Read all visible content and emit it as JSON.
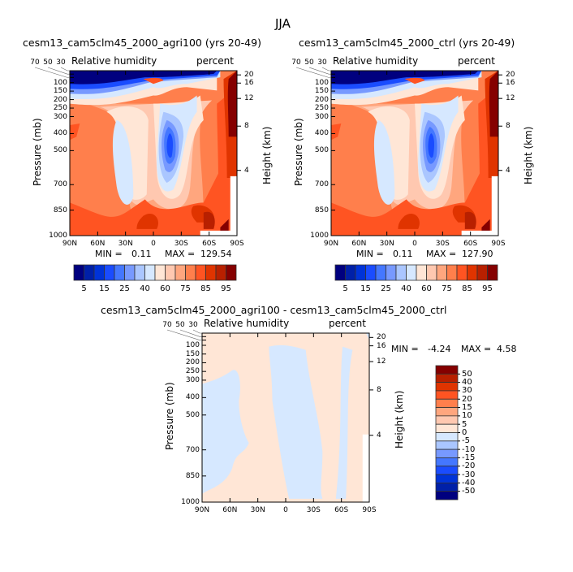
{
  "chart_data": [
    {
      "type": "heatmap",
      "title": "cesm13_cam5clm45_2000_agri100 (yrs 20-49)",
      "left_string": "Relative humidity",
      "right_string": "percent",
      "ylabel": "Pressure (mb)",
      "ylabel_right": "Height (km)",
      "stats": {
        "min_label": "MIN =",
        "min": "0.11",
        "max_label": "MAX =",
        "max": "129.54"
      },
      "x_ticks": [
        "90N",
        "60N",
        "30N",
        "0",
        "30S",
        "60S",
        "90S"
      ],
      "y_ticks": [
        30,
        50,
        70,
        100,
        150,
        200,
        250,
        300,
        400,
        500,
        700,
        850,
        1000
      ],
      "y_ticks_right": [
        4,
        8,
        12,
        16,
        20
      ],
      "ylim": [
        1000,
        30
      ],
      "colorbar": {
        "orientation": "horizontal",
        "levels": [
          5,
          10,
          15,
          20,
          25,
          30,
          40,
          50,
          60,
          70,
          75,
          80,
          85,
          90,
          95
        ],
        "labels": [
          "5",
          "15",
          "25",
          "40",
          "60",
          "75",
          "85",
          "95"
        ]
      }
    },
    {
      "type": "heatmap",
      "title": "cesm13_cam5clm45_2000_ctrl (yrs 20-49)",
      "left_string": "Relative humidity",
      "right_string": "percent",
      "ylabel": "Pressure (mb)",
      "ylabel_right": "Height (km)",
      "stats": {
        "min_label": "MIN =",
        "min": "0.11",
        "max_label": "MAX =",
        "max": "127.90"
      },
      "x_ticks": [
        "90N",
        "60N",
        "30N",
        "0",
        "30S",
        "60S",
        "90S"
      ],
      "y_ticks": [
        30,
        50,
        70,
        100,
        150,
        200,
        250,
        300,
        400,
        500,
        700,
        850,
        1000
      ],
      "y_ticks_right": [
        4,
        8,
        12,
        16,
        20
      ],
      "ylim": [
        1000,
        30
      ],
      "colorbar": {
        "orientation": "horizontal",
        "levels": [
          5,
          10,
          15,
          20,
          25,
          30,
          40,
          50,
          60,
          70,
          75,
          80,
          85,
          90,
          95
        ],
        "labels": [
          "5",
          "15",
          "25",
          "40",
          "60",
          "75",
          "85",
          "95"
        ]
      }
    },
    {
      "type": "heatmap",
      "title": "cesm13_cam5clm45_2000_agri100 - cesm13_cam5clm45_2000_ctrl",
      "left_string": "Relative humidity",
      "right_string": "percent",
      "ylabel": "Pressure (mb)",
      "ylabel_right": "Height (km)",
      "stats": {
        "min_label": "MIN =",
        "min": "-4.24",
        "max_label": "MAX =",
        "max": "4.58"
      },
      "x_ticks": [
        "90N",
        "60N",
        "30N",
        "0",
        "30S",
        "60S",
        "90S"
      ],
      "y_ticks": [
        30,
        50,
        70,
        100,
        150,
        200,
        250,
        300,
        400,
        500,
        700,
        850,
        1000
      ],
      "y_ticks_right": [
        4,
        8,
        12,
        16,
        20
      ],
      "ylim": [
        1000,
        30
      ],
      "colorbar": {
        "orientation": "vertical",
        "levels": [
          -50,
          -40,
          -30,
          -20,
          -15,
          -10,
          -5,
          0,
          5,
          10,
          15,
          20,
          30,
          40,
          50
        ],
        "labels": [
          "-50",
          "-40",
          "-30",
          "-20",
          "-15",
          "-10",
          "-5",
          "0",
          "5",
          "10",
          "15",
          "20",
          "30",
          "40",
          "50"
        ]
      }
    }
  ],
  "main_title": "JJA",
  "palette": [
    "#00007f",
    "#0020a8",
    "#0033d8",
    "#1a4cff",
    "#4477ff",
    "#7799ff",
    "#aac6ff",
    "#d6e8ff",
    "#ffe6d6",
    "#ffc8b0",
    "#ffa67e",
    "#ff7f4c",
    "#ff5422",
    "#e03400",
    "#b82000",
    "#850000"
  ]
}
